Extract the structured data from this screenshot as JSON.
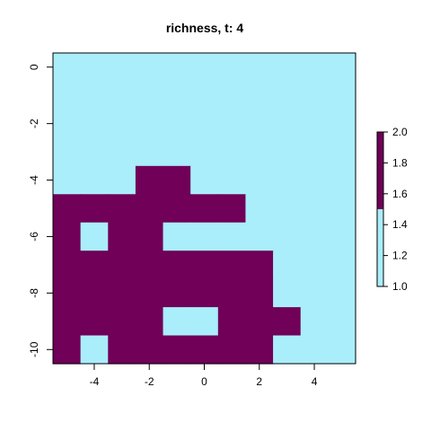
{
  "chart_data": {
    "type": "heatmap",
    "title": "richness, t: 4",
    "xlabel": "",
    "ylabel": "",
    "xlim": [
      -5.5,
      5.5
    ],
    "ylim": [
      -10.5,
      0.5
    ],
    "x_ticks": [
      -4,
      -2,
      0,
      2,
      4
    ],
    "x_tick_labels": [
      "-4",
      "-2",
      "0",
      "2",
      "4"
    ],
    "y_ticks": [
      0,
      -2,
      -4,
      -6,
      -8,
      -10
    ],
    "y_tick_labels": [
      "0",
      "-2",
      "-4",
      "-6",
      "-8",
      "-10"
    ],
    "x": [
      -5,
      -4,
      -3,
      -2,
      -1,
      0,
      1,
      2,
      3,
      4,
      5
    ],
    "y": [
      0,
      -1,
      -2,
      -3,
      -4,
      -5,
      -6,
      -7,
      -8,
      -9,
      -10
    ],
    "values": [
      [
        1,
        1,
        1,
        1,
        1,
        1,
        1,
        1,
        1,
        1,
        1
      ],
      [
        1,
        1,
        1,
        1,
        1,
        1,
        1,
        1,
        1,
        1,
        1
      ],
      [
        1,
        1,
        1,
        1,
        1,
        1,
        1,
        1,
        1,
        1,
        1
      ],
      [
        1,
        1,
        1,
        1,
        1,
        1,
        1,
        1,
        1,
        1,
        1
      ],
      [
        1,
        1,
        1,
        2,
        2,
        1,
        1,
        1,
        1,
        1,
        1
      ],
      [
        2,
        2,
        2,
        2,
        2,
        2,
        2,
        1,
        1,
        1,
        1
      ],
      [
        2,
        1,
        2,
        2,
        1,
        1,
        1,
        1,
        1,
        1,
        1
      ],
      [
        2,
        2,
        2,
        2,
        2,
        2,
        2,
        2,
        1,
        1,
        1
      ],
      [
        2,
        2,
        2,
        2,
        2,
        2,
        2,
        2,
        1,
        1,
        1
      ],
      [
        2,
        2,
        2,
        2,
        1,
        1,
        2,
        2,
        2,
        1,
        1
      ],
      [
        2,
        1,
        2,
        2,
        2,
        2,
        2,
        2,
        1,
        1,
        1
      ]
    ],
    "colors": {
      "low": "#aaeefc",
      "high": "#700058"
    },
    "colorbar": {
      "range": [
        1.0,
        2.0
      ],
      "break": 1.5,
      "ticks": [
        1.0,
        1.2,
        1.4,
        1.6,
        1.8,
        2.0
      ],
      "tick_labels": [
        "1.0",
        "1.2",
        "1.4",
        "1.6",
        "1.8",
        "2.0"
      ],
      "placement": "right"
    },
    "grid": false
  }
}
